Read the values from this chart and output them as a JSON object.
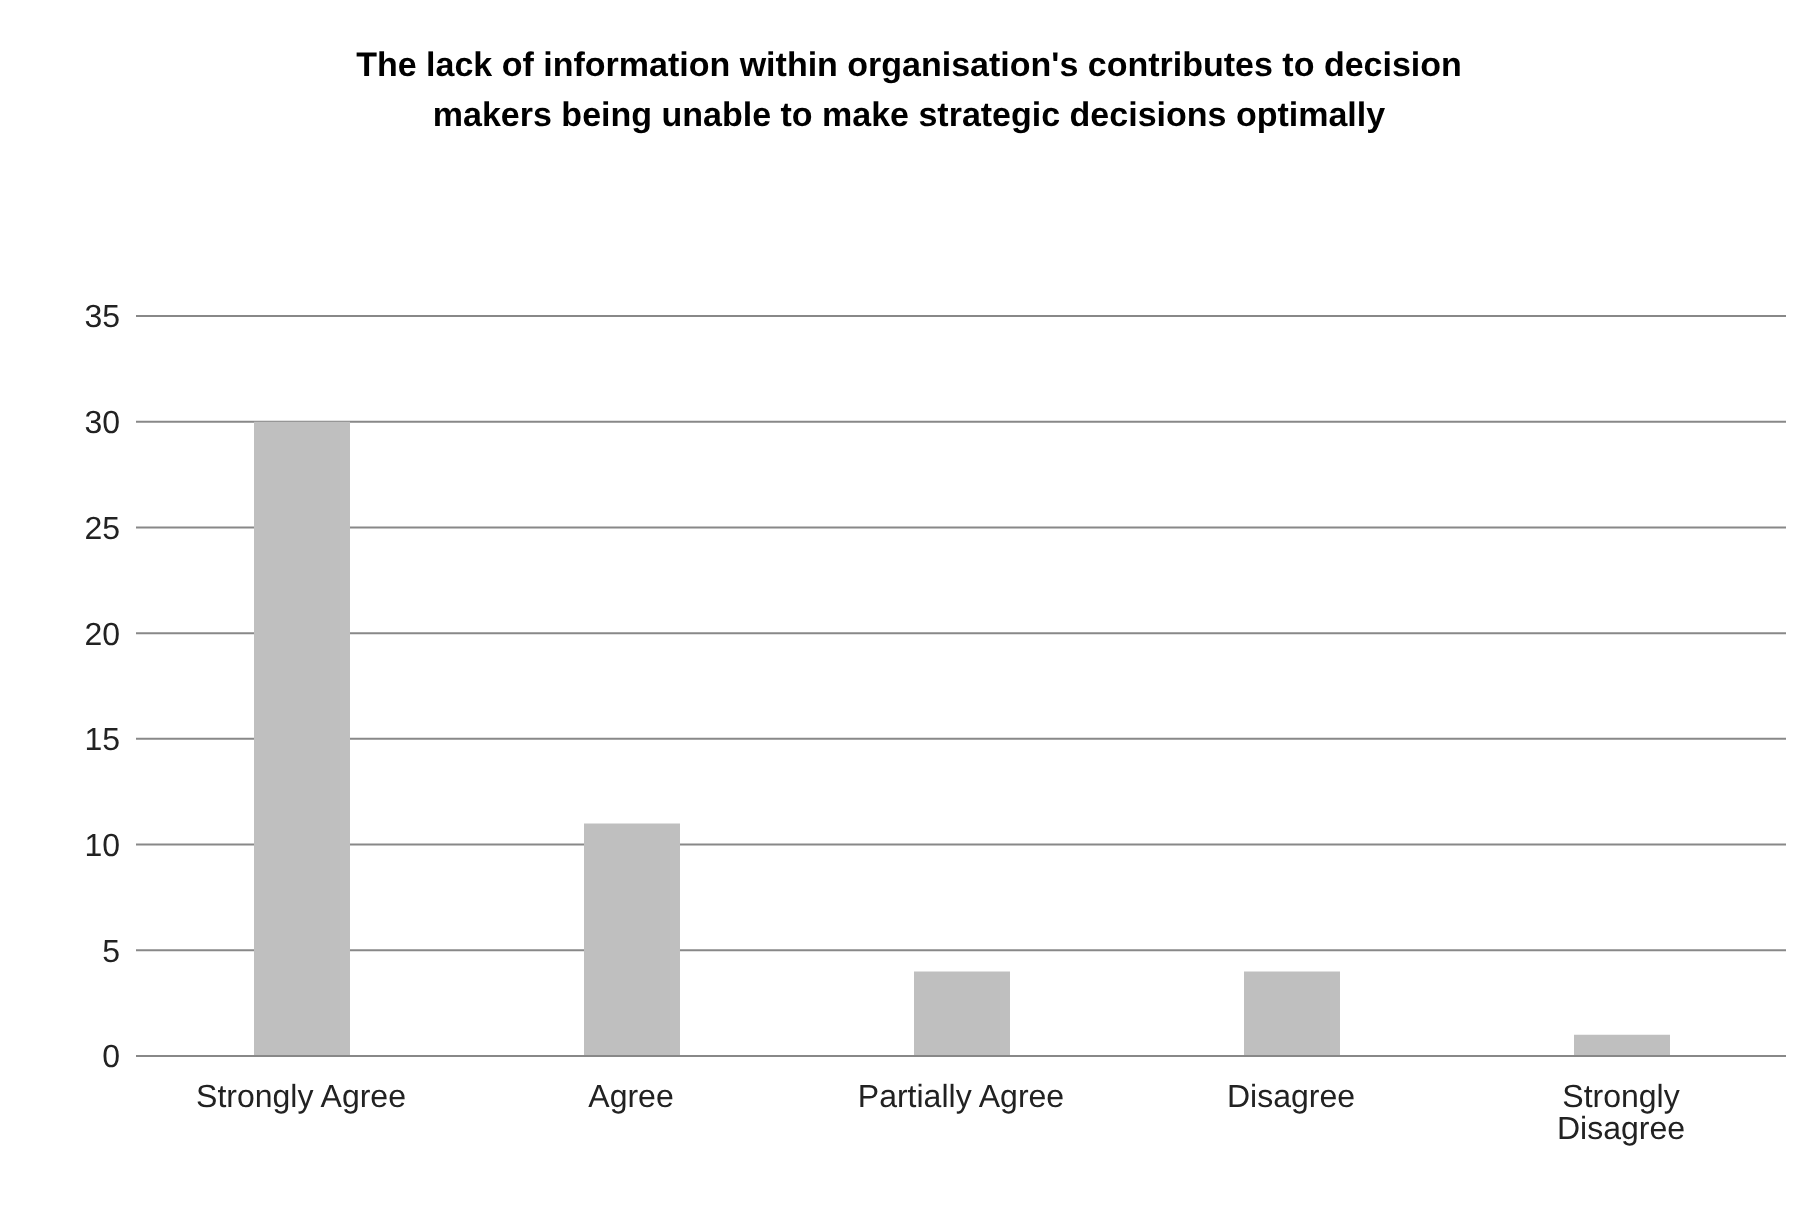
{
  "chart_data": {
    "type": "bar",
    "title": "The lack of information within organisation's contributes to decision makers being unable to make strategic decisions optimally",
    "categories": [
      "Strongly Agree",
      "Agree",
      "Partially Agree",
      "Disagree",
      "Strongly Disagree"
    ],
    "values": [
      30,
      11,
      4,
      4,
      1
    ],
    "color": "#bfbfbf",
    "ylim": [
      0,
      35
    ],
    "yticks": [
      0,
      5,
      10,
      15,
      20,
      25,
      30,
      35
    ],
    "grid": "y",
    "legend": false
  }
}
